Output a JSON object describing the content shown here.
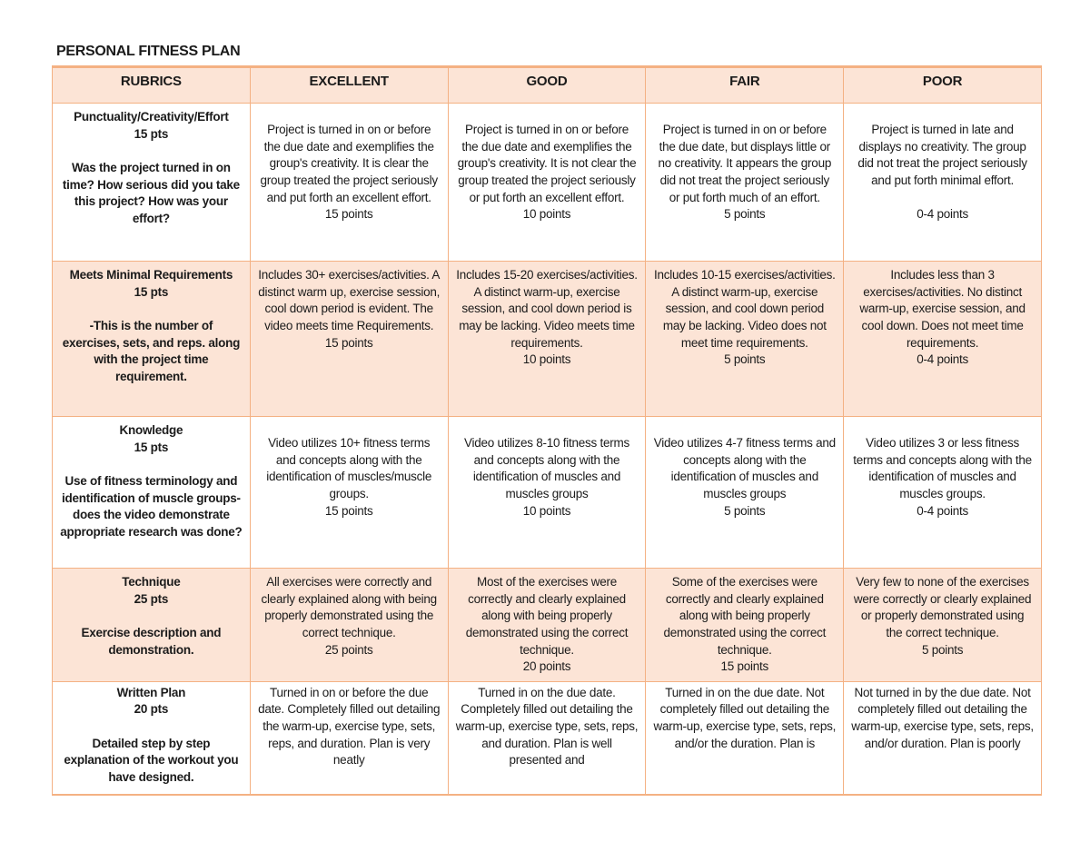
{
  "title": "PERSONAL FITNESS PLAN",
  "colors": {
    "border_color": "#F4B183",
    "fill_color": "#FCE4D6",
    "text_color": "#1b1b1b"
  },
  "table": {
    "headers": [
      "RUBRICS",
      "EXCELLENT",
      "GOOD",
      "FAIR",
      "POOR"
    ],
    "rows": [
      {
        "criterion": "Punctuality/Creativity/Effort\n15 pts\n\nWas the project turned in on time? How serious did you take this project? How was your effort?",
        "excellent": "Project is turned in on or before the due date and exemplifies the group's creativity. It is clear the group treated the project seriously and put forth an excellent effort.\n15 points",
        "good": "Project is turned in on or before the due date and exemplifies the group's creativity. It is not clear the group treated the project seriously or put forth an excellent effort.\n10 points",
        "fair": "Project is turned in on or before the due date, but displays little or no creativity. It appears the group did not treat the project seriously or put forth much of an effort.\n5 points",
        "poor": "Project is turned in late and displays no creativity. The group did not treat the project seriously and put forth minimal effort.\n\n0-4 points"
      },
      {
        "criterion": "Meets Minimal Requirements\n15 pts\n\n-This is the number of exercises, sets, and reps. along with the project time requirement.",
        "excellent": "Includes 30+ exercises/activities. A distinct warm up, exercise session, cool down period is evident. The video meets time Requirements.\n15 points",
        "good": "Includes 15-20 exercises/activities. A distinct warm-up, exercise session, and cool down period is may be lacking. Video meets time requirements.\n10 points",
        "fair": "Includes 10-15 exercises/activities. A distinct warm-up, exercise session, and cool down period may be lacking. Video does not meet time requirements.\n5 points",
        "poor": "Includes less than 3 exercises/activities. No distinct warm-up, exercise session, and cool down. Does not meet time requirements.\n0-4 points"
      },
      {
        "criterion": "Knowledge\n15 pts\n\nUse of fitness terminology and identification of muscle groups-does the video demonstrate appropriate research was done?",
        "excellent": "Video utilizes 10+ fitness terms and concepts along with the identification of muscles/muscle groups.\n15 points",
        "good": "Video utilizes 8-10 fitness terms and concepts along with the identification of muscles and muscles groups\n10 points",
        "fair": "Video utilizes 4-7 fitness terms and concepts along with the identification of muscles and muscles groups\n5 points",
        "poor": "Video utilizes 3 or less fitness terms and concepts along with the identification of muscles and muscles groups.\n0-4 points"
      },
      {
        "criterion": "Technique\n25 pts\n\nExercise description and demonstration.",
        "excellent": "All exercises were correctly and clearly explained along with being properly demonstrated using the correct technique.\n25 points",
        "good": "Most of the exercises were correctly and clearly explained along with being properly demonstrated using the correct technique.\n20 points",
        "fair": "Some of the exercises were correctly and clearly explained along with being properly demonstrated using the correct technique.\n15 points",
        "poor": "Very few to none of the exercises were correctly or clearly explained or properly demonstrated using the correct technique.\n5 points"
      },
      {
        "criterion": "Written Plan\n20 pts\n\nDetailed step by step explanation of the workout you have designed.",
        "excellent": "Turned in on or before the due date. Completely filled out detailing the warm-up, exercise type, sets, reps, and duration. Plan is very neatly",
        "good": "Turned in on the due date. Completely filled out detailing the warm-up, exercise type, sets, reps, and duration. Plan is well presented and",
        "fair": "Turned in on the due date. Not completely filled out detailing the warm-up, exercise type, sets, reps, and/or the duration. Plan is",
        "poor": "Not turned in by the due date. Not completely filled out detailing the warm-up, exercise type, sets, reps, and/or duration. Plan is poorly"
      }
    ]
  }
}
